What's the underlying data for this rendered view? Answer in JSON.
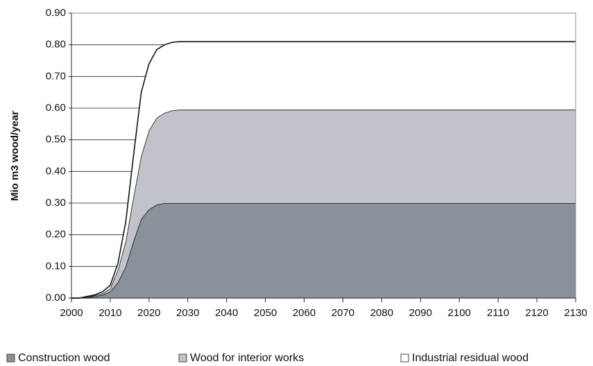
{
  "chart_data": {
    "type": "stacked_area",
    "y_label": "Mio m3 wood/year",
    "x": [
      2000,
      2002,
      2004,
      2006,
      2008,
      2010,
      2012,
      2014,
      2016,
      2018,
      2020,
      2022,
      2024,
      2026,
      2028,
      2030,
      2130
    ],
    "series": [
      {
        "name": "Construction wood",
        "color": "#8a9199",
        "values": [
          0,
          0,
          0.002,
          0.005,
          0.01,
          0.02,
          0.05,
          0.1,
          0.18,
          0.25,
          0.28,
          0.295,
          0.3,
          0.3,
          0.3,
          0.3,
          0.3
        ]
      },
      {
        "name": "Wood for interior works",
        "color": "#c0c3ca",
        "values": [
          0,
          0,
          0.002,
          0.003,
          0.005,
          0.01,
          0.04,
          0.08,
          0.14,
          0.2,
          0.25,
          0.275,
          0.285,
          0.293,
          0.295,
          0.295,
          0.295
        ]
      },
      {
        "name": "Industrial residual wood",
        "color": "#ffffff",
        "values": [
          0,
          0,
          0.001,
          0.002,
          0.005,
          0.01,
          0.02,
          0.06,
          0.13,
          0.2,
          0.21,
          0.215,
          0.215,
          0.215,
          0.215,
          0.215,
          0.215
        ]
      }
    ],
    "xlim": [
      2000,
      2130
    ],
    "xticks": [
      2000,
      2010,
      2020,
      2030,
      2040,
      2050,
      2060,
      2070,
      2080,
      2090,
      2100,
      2110,
      2120,
      2130
    ],
    "ylim": [
      0,
      0.9
    ],
    "yticks": [
      {
        "value": 0,
        "label": "0.00"
      },
      {
        "value": 0.1,
        "label": "0.10"
      },
      {
        "value": 0.2,
        "label": "0.20"
      },
      {
        "value": 0.3,
        "label": "0.30"
      },
      {
        "value": 0.4,
        "label": "0.40"
      },
      {
        "value": 0.5,
        "label": "0.50"
      },
      {
        "value": 0.6,
        "label": "0.60"
      },
      {
        "value": 0.7,
        "label": "0.70"
      },
      {
        "value": 0.8,
        "label": "0.80"
      },
      {
        "value": 0.9,
        "label": "0.90"
      }
    ],
    "grid": true,
    "legend": "bottom"
  }
}
